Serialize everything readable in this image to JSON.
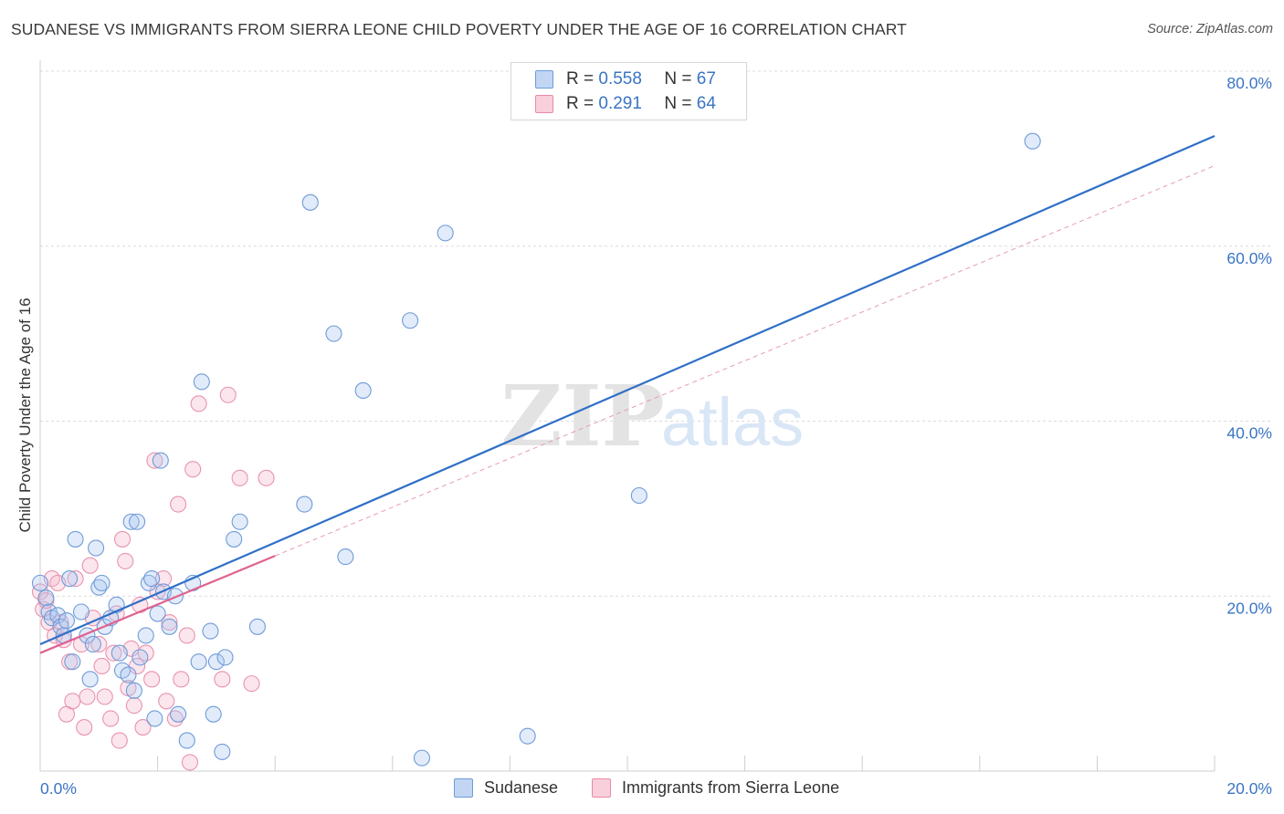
{
  "title": "SUDANESE VS IMMIGRANTS FROM SIERRA LEONE CHILD POVERTY UNDER THE AGE OF 16 CORRELATION CHART",
  "source": "Source: ZipAtlas.com",
  "watermark": {
    "zip": "ZIP",
    "atlas": "atlas"
  },
  "legend": {
    "rows": [
      {
        "r_label": "R =",
        "r_value": "0.558",
        "n_label": "N =",
        "n_value": "67",
        "color": "#a8c6f0"
      },
      {
        "r_label": "R =",
        "r_value": "0.291",
        "n_label": "N =",
        "n_value": "64",
        "color": "#f6b8cc"
      }
    ]
  },
  "bottom_legend": [
    "Sudanese",
    "Immigrants from Sierra Leone"
  ],
  "chart_data": {
    "type": "scatter",
    "title": "SUDANESE VS IMMIGRANTS FROM SIERRA LEONE CHILD POVERTY UNDER THE AGE OF 16 CORRELATION CHART",
    "xlabel": "",
    "ylabel": "Child Poverty Under the Age of 16",
    "xlim": [
      0,
      20
    ],
    "ylim": [
      0,
      80
    ],
    "x_tick_labels": [
      "0.0%",
      "20.0%"
    ],
    "y_tick_labels": [
      "20.0%",
      "40.0%",
      "60.0%",
      "80.0%"
    ],
    "y_ticks": [
      20,
      40,
      60,
      80
    ],
    "grid": true,
    "legend_position": "top-center",
    "colors": {
      "sudanese": "#3a75c4",
      "sierra_leone": "#e0628f",
      "sudanese_fill": "#a8c6f0",
      "sierra_leone_fill": "#f6b8cc"
    },
    "series": [
      {
        "name": "Sudanese",
        "r": 0.558,
        "n": 67,
        "trend": {
          "x": [
            0,
            20
          ],
          "y": [
            14.5,
            72.6
          ]
        },
        "points": [
          [
            0.0,
            21.5
          ],
          [
            0.1,
            19.8
          ],
          [
            0.15,
            18.2
          ],
          [
            0.2,
            17.5
          ],
          [
            0.3,
            17.8
          ],
          [
            0.35,
            16.5
          ],
          [
            0.4,
            15.5
          ],
          [
            0.45,
            17.2
          ],
          [
            0.5,
            22
          ],
          [
            0.55,
            12.5
          ],
          [
            0.6,
            26.5
          ],
          [
            0.7,
            18.2
          ],
          [
            0.8,
            15.5
          ],
          [
            0.85,
            10.5
          ],
          [
            0.9,
            14.5
          ],
          [
            0.95,
            25.5
          ],
          [
            1.0,
            21
          ],
          [
            1.05,
            21.5
          ],
          [
            1.1,
            16.5
          ],
          [
            1.2,
            17.5
          ],
          [
            1.3,
            19
          ],
          [
            1.35,
            13.5
          ],
          [
            1.4,
            11.5
          ],
          [
            1.5,
            11
          ],
          [
            1.55,
            28.5
          ],
          [
            1.6,
            9.2
          ],
          [
            1.65,
            28.5
          ],
          [
            1.7,
            13
          ],
          [
            1.8,
            15.5
          ],
          [
            1.85,
            21.5
          ],
          [
            1.9,
            22
          ],
          [
            1.95,
            6
          ],
          [
            2.0,
            18
          ],
          [
            2.05,
            35.5
          ],
          [
            2.1,
            20.5
          ],
          [
            2.2,
            16.5
          ],
          [
            2.3,
            20
          ],
          [
            2.35,
            6.5
          ],
          [
            2.5,
            3.5
          ],
          [
            2.6,
            21.5
          ],
          [
            2.7,
            12.5
          ],
          [
            2.75,
            44.5
          ],
          [
            2.9,
            16
          ],
          [
            2.95,
            6.5
          ],
          [
            3.0,
            12.5
          ],
          [
            3.1,
            2.2
          ],
          [
            3.15,
            13
          ],
          [
            3.3,
            26.5
          ],
          [
            3.4,
            28.5
          ],
          [
            3.7,
            16.5
          ],
          [
            4.5,
            30.5
          ],
          [
            4.6,
            65
          ],
          [
            5.0,
            50
          ],
          [
            5.2,
            24.5
          ],
          [
            5.5,
            43.5
          ],
          [
            6.3,
            51.5
          ],
          [
            6.5,
            1.5
          ],
          [
            6.9,
            61.5
          ],
          [
            8.3,
            4
          ],
          [
            10.2,
            31.5
          ],
          [
            16.9,
            72
          ]
        ]
      },
      {
        "name": "Immigrants from Sierra Leone",
        "r": 0.291,
        "n": 64,
        "trend": {
          "x": [
            0,
            4
          ],
          "y": [
            13.5,
            24.6
          ]
        },
        "trend_extension": {
          "x": [
            4,
            20
          ],
          "y": [
            24.6,
            69.2
          ]
        },
        "points": [
          [
            0.0,
            20.5
          ],
          [
            0.05,
            18.5
          ],
          [
            0.1,
            19.5
          ],
          [
            0.15,
            17
          ],
          [
            0.2,
            22
          ],
          [
            0.25,
            15.5
          ],
          [
            0.3,
            21.5
          ],
          [
            0.35,
            17
          ],
          [
            0.4,
            15
          ],
          [
            0.45,
            6.5
          ],
          [
            0.5,
            12.5
          ],
          [
            0.55,
            8
          ],
          [
            0.6,
            22
          ],
          [
            0.7,
            14.5
          ],
          [
            0.75,
            5
          ],
          [
            0.8,
            8.5
          ],
          [
            0.85,
            23.5
          ],
          [
            0.9,
            17.5
          ],
          [
            1.0,
            14.5
          ],
          [
            1.05,
            12
          ],
          [
            1.1,
            8.5
          ],
          [
            1.2,
            6
          ],
          [
            1.25,
            13.5
          ],
          [
            1.3,
            18
          ],
          [
            1.35,
            3.5
          ],
          [
            1.4,
            26.5
          ],
          [
            1.45,
            24
          ],
          [
            1.5,
            9.5
          ],
          [
            1.55,
            14
          ],
          [
            1.6,
            7.5
          ],
          [
            1.65,
            12
          ],
          [
            1.7,
            19
          ],
          [
            1.75,
            5
          ],
          [
            1.8,
            13.5
          ],
          [
            1.9,
            10.5
          ],
          [
            1.95,
            35.5
          ],
          [
            2.0,
            20.5
          ],
          [
            2.1,
            22
          ],
          [
            2.15,
            8
          ],
          [
            2.2,
            17
          ],
          [
            2.3,
            6
          ],
          [
            2.35,
            30.5
          ],
          [
            2.4,
            10.5
          ],
          [
            2.5,
            15.5
          ],
          [
            2.55,
            1
          ],
          [
            2.6,
            34.5
          ],
          [
            2.7,
            42
          ],
          [
            3.1,
            10.5
          ],
          [
            3.2,
            43
          ],
          [
            3.4,
            33.5
          ],
          [
            3.6,
            10
          ],
          [
            3.85,
            33.5
          ]
        ]
      }
    ]
  }
}
